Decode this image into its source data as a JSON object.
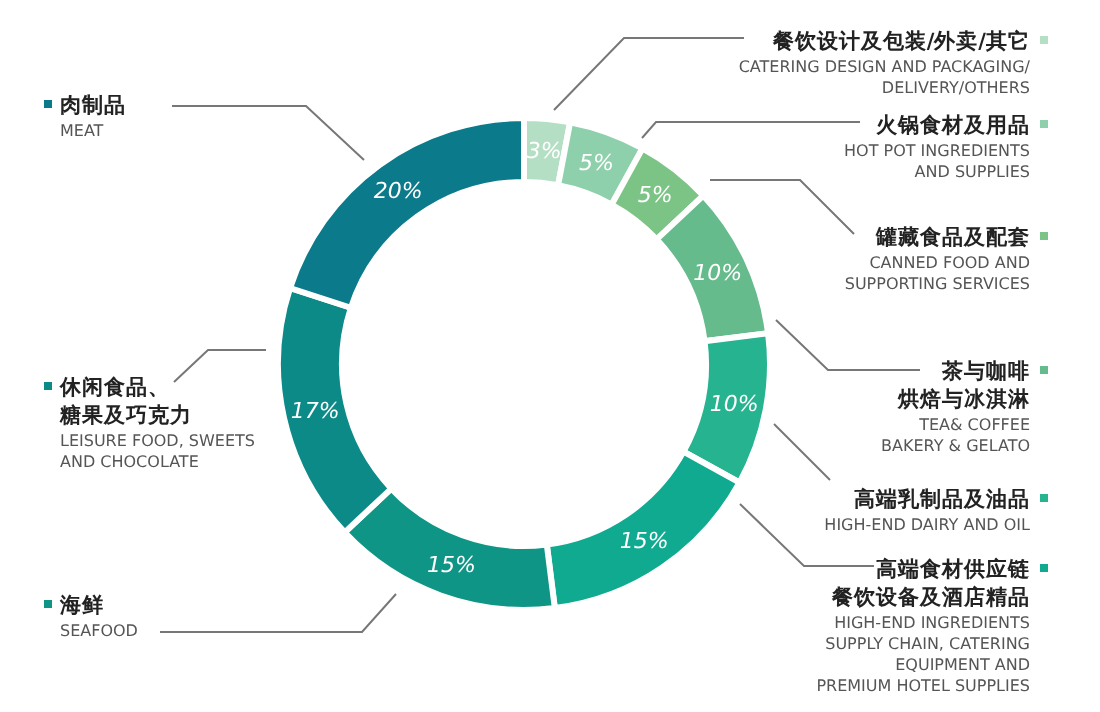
{
  "chart_data": {
    "type": "donut",
    "categories": [
      "餐饮设计及包装/外卖/其它\nCATERING DESIGN AND PACKAGING/\nDELIVERY/OTHERS",
      "火锅食材及用品\nHOT POT INGREDIENTS\nAND SUPPLIES",
      "罐藏食品及配套\nCANNED FOOD AND\nSUPPORTING SERVICES",
      "茶与咖啡烘焙与冰淇淋\nTEA& COFFEE\nBAKERY & GELATO",
      "高端乳制品及油品\nHIGH-END DAIRY AND OIL",
      "高端食材供应链餐饮设备及酒店精品\nHIGH-END INGREDIENTS\nSUPPLY CHAIN, CATERING\nEQUIPMENT AND\nPREMIUM HOTEL SUPPLIES",
      "海鲜\nSEAFOOD",
      "休闲食品、糖果及巧克力\nLEISURE FOOD, SWEETS\nAND CHOCOLATE",
      "肉制品\nMEAT"
    ],
    "values": [
      3,
      5,
      5,
      10,
      10,
      15,
      15,
      17,
      20
    ],
    "value_labels": [
      "3%",
      "5%",
      "5%",
      "10%",
      "10%",
      "15%",
      "15%",
      "17%",
      "20%"
    ],
    "colors": [
      "#b5dfc4",
      "#8fd0ac",
      "#7cc486",
      "#66bb8c",
      "#26b38f",
      "#10aa90",
      "#0f9585",
      "#0b8a87",
      "#0b7a8a"
    ],
    "legend": "right"
  }
}
